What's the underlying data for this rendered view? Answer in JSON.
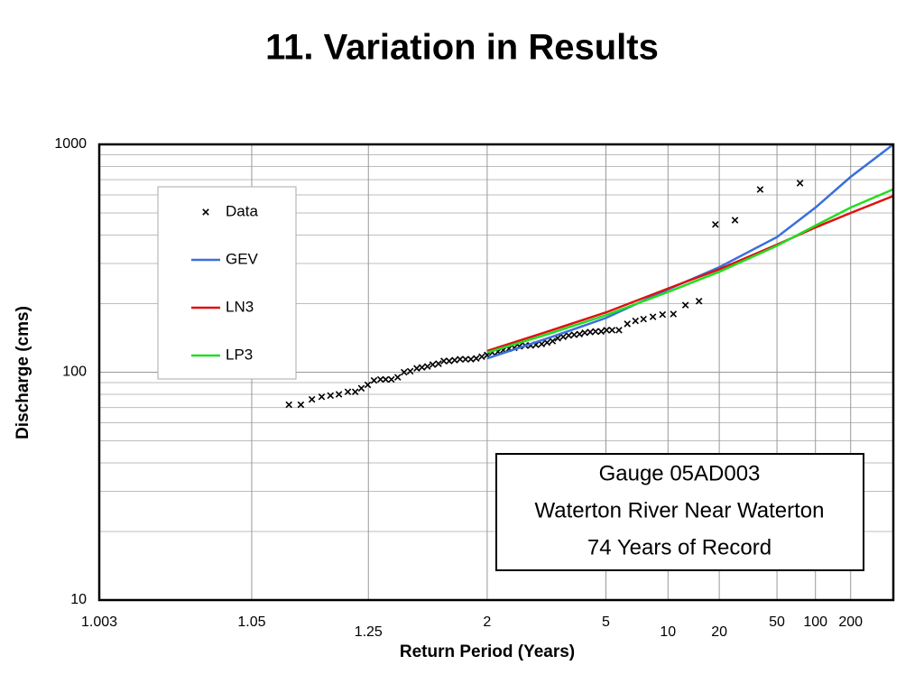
{
  "chart_data": {
    "type": "line",
    "title": "11. Variation in Results",
    "x_label": "Return Period (Years)",
    "y_label": "Discharge (cms)",
    "xscale": "normal-probability",
    "yscale": "log",
    "xlim": [
      1.003,
      500
    ],
    "ylim": [
      10,
      1000
    ],
    "xticks": [
      1.003,
      1.05,
      1.25,
      2,
      5,
      10,
      20,
      50,
      100,
      200
    ],
    "yticks": [
      10,
      100,
      1000
    ],
    "grid": true,
    "legend": "upper-left",
    "annotation": [
      "Gauge 05AD003",
      "Waterton River Near Waterton",
      "74 Years of Record"
    ],
    "series": [
      {
        "name": "Data",
        "type": "scatter",
        "color": "#000000",
        "x": [
          1.087,
          1.103,
          1.12,
          1.137,
          1.154,
          1.172,
          1.193,
          1.212,
          1.229,
          1.248,
          1.268,
          1.29,
          1.309,
          1.331,
          1.357,
          1.385,
          1.414,
          1.447,
          1.475,
          1.506,
          1.538,
          1.575,
          1.611,
          1.65,
          1.692,
          1.736,
          1.783,
          1.832,
          1.884,
          1.941,
          2.0,
          2.06,
          2.13,
          2.2,
          2.28,
          2.36,
          2.44,
          2.54,
          2.64,
          2.74,
          2.86,
          2.98,
          3.11,
          3.24,
          3.39,
          3.55,
          3.72,
          3.9,
          4.09,
          4.3,
          4.52,
          4.77,
          5.03,
          5.32,
          5.71,
          6.24,
          6.82,
          7.47,
          8.33,
          9.35,
          10.7,
          12.5,
          15.0,
          18.9,
          25.3,
          37.7,
          75.1
        ],
        "values": [
          72,
          72,
          76,
          78,
          79,
          80,
          82,
          82,
          85,
          88,
          92,
          93,
          93,
          93,
          95,
          100,
          101,
          104,
          105,
          106,
          108,
          109,
          112,
          112,
          113,
          114,
          114,
          114,
          115,
          117,
          119,
          122,
          123,
          125,
          127,
          128,
          130,
          131,
          131,
          132,
          133,
          135,
          137,
          141,
          143,
          145,
          146,
          147,
          149,
          150,
          151,
          151,
          153,
          153,
          153,
          163,
          168,
          171,
          175,
          179,
          180,
          197,
          205,
          445,
          465,
          634,
          676
        ]
      },
      {
        "name": "GEV",
        "type": "line",
        "color": "#3a6fdc",
        "x": [
          2,
          3,
          5,
          10,
          20,
          50,
          100,
          200,
          500
        ],
        "values": [
          115,
          141,
          173,
          231,
          289,
          392,
          528,
          720,
          1000
        ]
      },
      {
        "name": "LN3",
        "type": "line",
        "color": "#e01010",
        "x": [
          2,
          3,
          5,
          10,
          20,
          50,
          100,
          200,
          500
        ],
        "values": [
          124,
          151,
          183,
          233,
          283,
          363,
          432,
          500,
          594
        ]
      },
      {
        "name": "LP3",
        "type": "line",
        "color": "#22dd22",
        "x": [
          2,
          3,
          5,
          10,
          20,
          50,
          100,
          200,
          500
        ],
        "values": [
          122,
          147,
          178,
          225,
          276,
          359,
          440,
          528,
          635
        ]
      }
    ]
  }
}
